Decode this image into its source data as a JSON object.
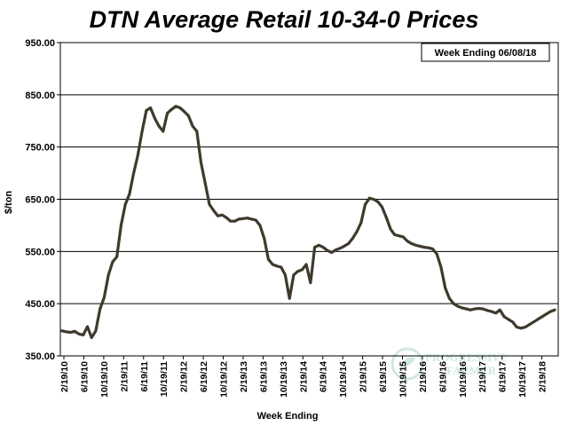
{
  "chart_data": {
    "type": "line",
    "title": "DTN Average Retail 10-34-0 Prices",
    "xlabel": "Week Ending",
    "ylabel": "$/ton",
    "ylim": [
      350,
      950
    ],
    "yticks": [
      "350.00",
      "450.00",
      "550.00",
      "650.00",
      "750.00",
      "850.00",
      "950.00"
    ],
    "xtick_labels": [
      "2/19/10",
      "6/19/10",
      "10/19/10",
      "2/19/11",
      "6/19/11",
      "10/19/11",
      "2/19/12",
      "6/19/12",
      "10/19/12",
      "2/19/13",
      "6/19/13",
      "10/19/13",
      "2/19/14",
      "6/19/14",
      "10/19/14",
      "2/19/15",
      "6/19/15",
      "10/19/15",
      "2/19/16",
      "6/19/16",
      "10/19/16",
      "2/19/17",
      "6/19/17",
      "10/19/17",
      "2/19/18"
    ],
    "legend_text": "Week Ending 06/08/18",
    "legend_placement": "top-right",
    "grid": "horizontal",
    "line_color": "#3f3a2c",
    "series": [
      {
        "values": [
          [
            0,
            398
          ],
          [
            1,
            396
          ],
          [
            2,
            395
          ],
          [
            3,
            397
          ],
          [
            4,
            392
          ],
          [
            5,
            390
          ],
          [
            6,
            406
          ],
          [
            7,
            385
          ],
          [
            8,
            398
          ],
          [
            9,
            440
          ],
          [
            10,
            462
          ],
          [
            11,
            505
          ],
          [
            12,
            530
          ],
          [
            13,
            540
          ],
          [
            14,
            600
          ],
          [
            15,
            640
          ],
          [
            16,
            660
          ],
          [
            17,
            700
          ],
          [
            18,
            735
          ],
          [
            19,
            780
          ],
          [
            20,
            820
          ],
          [
            21,
            825
          ],
          [
            22,
            805
          ],
          [
            23,
            790
          ],
          [
            24,
            780
          ],
          [
            25,
            815
          ],
          [
            26,
            822
          ],
          [
            27,
            828
          ],
          [
            28,
            825
          ],
          [
            29,
            818
          ],
          [
            30,
            810
          ],
          [
            31,
            790
          ],
          [
            32,
            780
          ],
          [
            33,
            720
          ],
          [
            34,
            680
          ],
          [
            35,
            640
          ],
          [
            36,
            628
          ],
          [
            37,
            618
          ],
          [
            38,
            620
          ],
          [
            39,
            615
          ],
          [
            40,
            608
          ],
          [
            41,
            608
          ],
          [
            42,
            612
          ],
          [
            43,
            613
          ],
          [
            44,
            614
          ],
          [
            45,
            612
          ],
          [
            46,
            610
          ],
          [
            47,
            600
          ],
          [
            48,
            575
          ],
          [
            49,
            535
          ],
          [
            50,
            525
          ],
          [
            51,
            522
          ],
          [
            52,
            520
          ],
          [
            53,
            505
          ],
          [
            54,
            460
          ],
          [
            55,
            505
          ],
          [
            56,
            512
          ],
          [
            57,
            515
          ],
          [
            58,
            525
          ],
          [
            59,
            490
          ],
          [
            60,
            558
          ],
          [
            61,
            562
          ],
          [
            62,
            558
          ],
          [
            63,
            552
          ],
          [
            64,
            548
          ],
          [
            65,
            553
          ],
          [
            66,
            556
          ],
          [
            67,
            560
          ],
          [
            68,
            565
          ],
          [
            69,
            575
          ],
          [
            70,
            588
          ],
          [
            71,
            605
          ],
          [
            72,
            640
          ],
          [
            73,
            652
          ],
          [
            74,
            650
          ],
          [
            75,
            645
          ],
          [
            76,
            635
          ],
          [
            77,
            615
          ],
          [
            78,
            593
          ],
          [
            79,
            582
          ],
          [
            80,
            580
          ],
          [
            81,
            578
          ],
          [
            82,
            570
          ],
          [
            83,
            565
          ],
          [
            84,
            562
          ],
          [
            85,
            560
          ],
          [
            86,
            558
          ],
          [
            87,
            557
          ],
          [
            88,
            555
          ],
          [
            89,
            545
          ],
          [
            90,
            520
          ],
          [
            91,
            480
          ],
          [
            92,
            460
          ],
          [
            93,
            450
          ],
          [
            94,
            445
          ],
          [
            95,
            442
          ],
          [
            96,
            440
          ],
          [
            97,
            438
          ],
          [
            98,
            440
          ],
          [
            99,
            441
          ],
          [
            100,
            440
          ],
          [
            101,
            437
          ],
          [
            102,
            435
          ],
          [
            103,
            432
          ],
          [
            104,
            438
          ],
          [
            105,
            425
          ],
          [
            106,
            420
          ],
          [
            107,
            415
          ],
          [
            108,
            405
          ],
          [
            109,
            403
          ],
          [
            110,
            405
          ],
          [
            111,
            410
          ],
          [
            112,
            415
          ],
          [
            113,
            420
          ],
          [
            114,
            425
          ],
          [
            115,
            430
          ],
          [
            116,
            435
          ],
          [
            117,
            438
          ]
        ]
      }
    ]
  },
  "watermark": {
    "text_line1": "PROGRESSIVE",
    "text_line2": "FARMER",
    "color": "#c8e6da"
  }
}
